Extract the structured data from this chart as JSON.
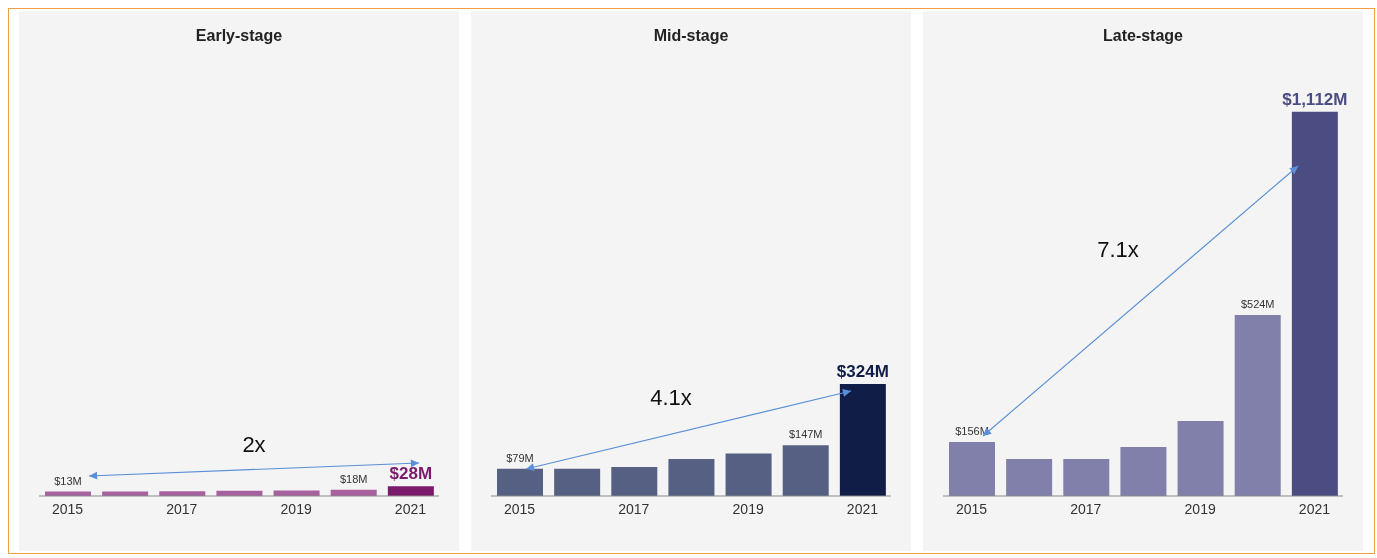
{
  "chart_data": [
    {
      "type": "bar",
      "title": "Early-stage",
      "categories": [
        "2015",
        null,
        "2017",
        null,
        "2019",
        null,
        "2021"
      ],
      "values": [
        13,
        13,
        14,
        15,
        16,
        18,
        28
      ],
      "colors": [
        "#a8619f",
        "#a8619f",
        "#a8619f",
        "#a8619f",
        "#a8619f",
        "#a8619f",
        "#7a1a6c"
      ],
      "value_labels": [
        "$13M",
        null,
        null,
        null,
        null,
        "$18M",
        "$28M"
      ],
      "annotations": [
        "2x"
      ],
      "grid": false
    },
    {
      "type": "bar",
      "title": "Mid-stage",
      "categories": [
        "2015",
        null,
        "2017",
        null,
        "2019",
        null,
        "2021"
      ],
      "values": [
        79,
        79,
        84,
        107,
        123,
        147,
        324
      ],
      "colors": [
        "#566082",
        "#566082",
        "#566082",
        "#566082",
        "#566082",
        "#566082",
        "#0f1d47"
      ],
      "value_labels": [
        "$79M",
        null,
        null,
        null,
        null,
        "$147M",
        "$324M"
      ],
      "annotations": [
        "4.1x"
      ],
      "grid": false
    },
    {
      "type": "bar",
      "title": "Late-stage",
      "categories": [
        "2015",
        null,
        "2017",
        null,
        "2019",
        null,
        "2021"
      ],
      "values": [
        156,
        107,
        107,
        142,
        217,
        524,
        1112
      ],
      "colors": [
        "#8180aa",
        "#8180aa",
        "#8180aa",
        "#8180aa",
        "#8180aa",
        "#8180aa",
        "#4b4c82"
      ],
      "value_labels": [
        "$156M",
        null,
        null,
        null,
        null,
        "$524M",
        "$1,112M"
      ],
      "annotations": [
        "7.1x"
      ],
      "grid": false
    }
  ]
}
